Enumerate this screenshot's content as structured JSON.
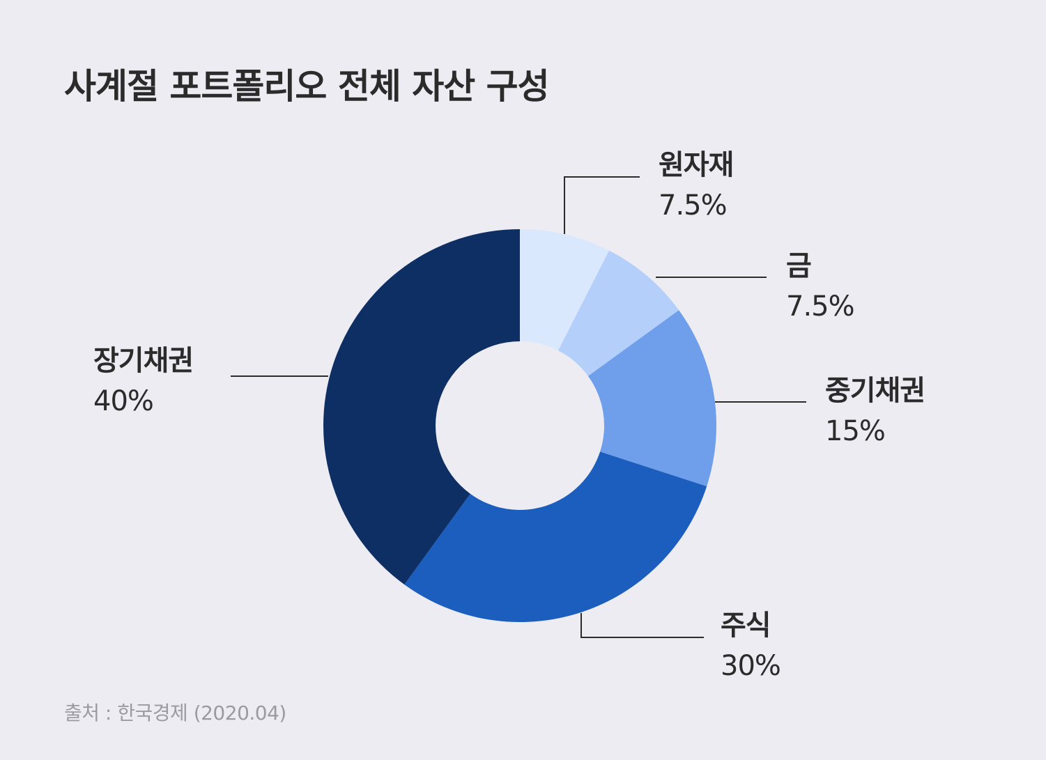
{
  "chart_data": {
    "type": "pie",
    "variant": "donut",
    "title": "사계절 포트폴리오 전체 자산 구성",
    "source": "출처 : 한국경제 (2020.04)",
    "slices": [
      {
        "label": "원자재",
        "value": 7.5,
        "value_label": "7.5%",
        "color": "#dae8fd"
      },
      {
        "label": "금",
        "value": 7.5,
        "value_label": "7.5%",
        "color": "#b3cffa"
      },
      {
        "label": "중기채권",
        "value": 15,
        "value_label": "15%",
        "color": "#6f9fea"
      },
      {
        "label": "주식",
        "value": 30,
        "value_label": "30%",
        "color": "#1c5ebe"
      },
      {
        "label": "장기채권",
        "value": 40,
        "value_label": "40%",
        "color": "#0e2f63"
      }
    ],
    "background_color": "#edecf2",
    "text_color": "#2b2b2b",
    "leader_line_color": "#2b2b2b"
  }
}
